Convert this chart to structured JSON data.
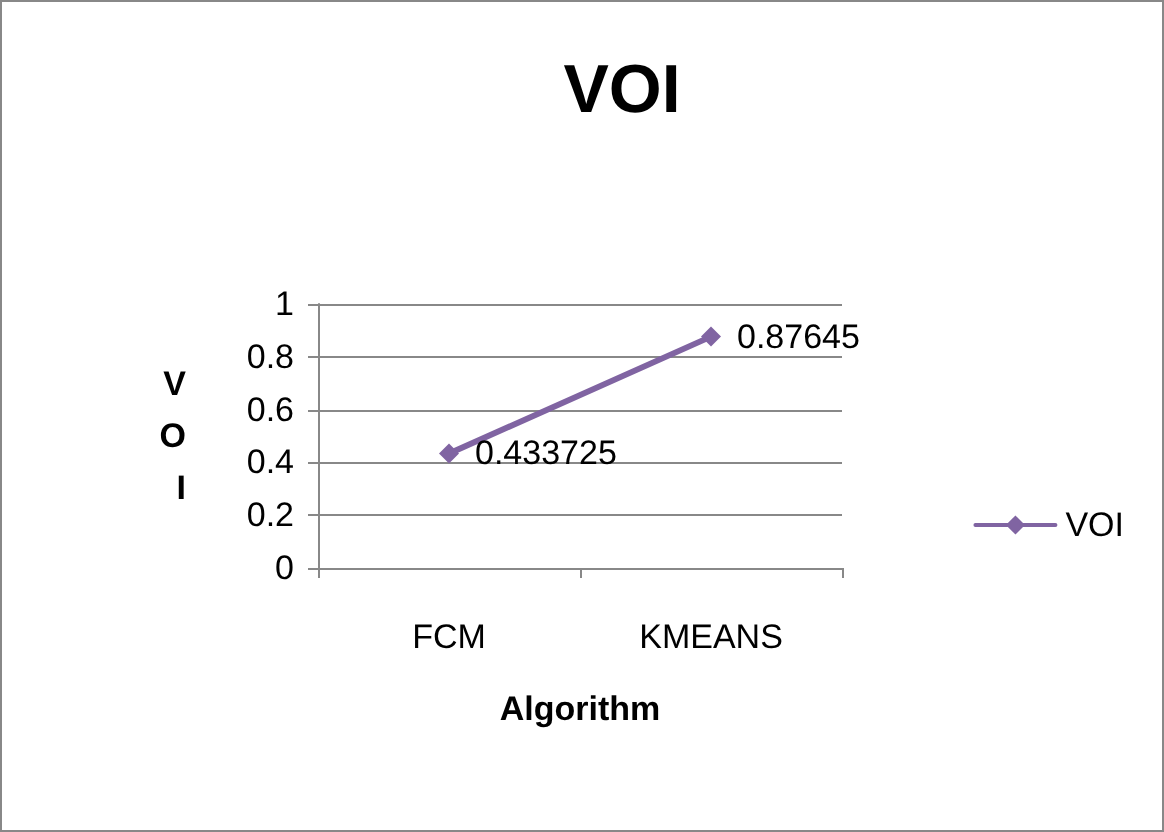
{
  "chart_data": {
    "type": "line",
    "title": "VOI",
    "xlabel": "Algorithm",
    "ylabel": "VOI",
    "categories": [
      "FCM",
      "KMEANS"
    ],
    "series": [
      {
        "name": "VOI",
        "color": "#8064a2",
        "values": [
          0.433725,
          0.87645
        ]
      }
    ],
    "ylim": [
      0,
      1
    ],
    "yticks": [
      0,
      0.2,
      0.4,
      0.6,
      0.8,
      1
    ],
    "grid": "y",
    "legend": "right",
    "marker": "diamond",
    "data_labels": true
  }
}
